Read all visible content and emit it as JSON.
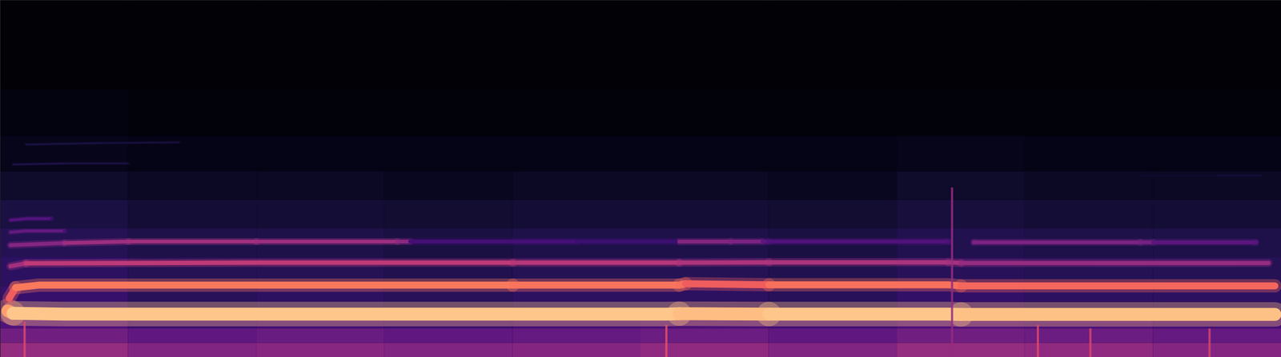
{
  "chart_data": {
    "type": "spectrogram",
    "tick_labels": false,
    "color": "magma",
    "level_range": [
      0,
      1
    ],
    "xlim": [
      0,
      100
    ],
    "ylim": [
      0,
      100
    ],
    "background": {
      "time_edges": [
        0,
        10,
        20,
        30,
        40,
        50,
        60,
        70,
        80,
        90,
        100
      ],
      "freq_edges": [
        0,
        4,
        8,
        12,
        20,
        28,
        36,
        44,
        52,
        62,
        75,
        100
      ],
      "levels": [
        [
          0.42,
          0.37,
          0.39,
          0.37,
          0.38,
          0.41,
          0.37,
          0.42,
          0.41,
          0.38
        ],
        [
          0.33,
          0.29,
          0.31,
          0.29,
          0.3,
          0.32,
          0.29,
          0.33,
          0.32,
          0.3
        ],
        [
          0.25,
          0.21,
          0.22,
          0.21,
          0.22,
          0.24,
          0.22,
          0.25,
          0.24,
          0.22
        ],
        [
          0.19,
          0.16,
          0.17,
          0.16,
          0.17,
          0.17,
          0.16,
          0.18,
          0.17,
          0.17
        ],
        [
          0.17,
          0.15,
          0.15,
          0.14,
          0.15,
          0.15,
          0.14,
          0.16,
          0.15,
          0.15
        ],
        [
          0.15,
          0.13,
          0.13,
          0.12,
          0.13,
          0.13,
          0.12,
          0.14,
          0.13,
          0.13
        ],
        [
          0.12,
          0.1,
          0.1,
          0.09,
          0.1,
          0.1,
          0.09,
          0.11,
          0.1,
          0.1
        ],
        [
          0.08,
          0.07,
          0.07,
          0.06,
          0.07,
          0.07,
          0.06,
          0.08,
          0.07,
          0.07
        ],
        [
          0.05,
          0.04,
          0.04,
          0.04,
          0.04,
          0.04,
          0.04,
          0.05,
          0.04,
          0.04
        ],
        [
          0.03,
          0.02,
          0.02,
          0.02,
          0.02,
          0.02,
          0.02,
          0.02,
          0.02,
          0.02
        ],
        [
          0.01,
          0.01,
          0.01,
          0.01,
          0.01,
          0.01,
          0.01,
          0.01,
          0.01,
          0.01
        ]
      ]
    },
    "harmonics": [
      {
        "x": [
          0.6,
          1,
          5,
          20,
          40,
          52,
          53,
          60,
          74,
          75,
          90,
          99.5
        ],
        "y": [
          13,
          12.3,
          12.1,
          12.1,
          12.1,
          12.1,
          12.2,
          12.1,
          12.1,
          12.0,
          12.0,
          12.0
        ],
        "level": [
          0.8,
          0.88,
          0.88,
          0.88,
          0.88,
          0.88,
          0.86,
          0.88,
          0.88,
          0.87,
          0.87,
          0.87
        ]
      },
      {
        "x": [
          0.7,
          1.2,
          3,
          20,
          40,
          53,
          53.5,
          60,
          74,
          75,
          90,
          99.5
        ],
        "y": [
          16.5,
          19.5,
          20.2,
          20.2,
          20.2,
          20.2,
          20.6,
          20.3,
          20.3,
          20.0,
          20.0,
          20.0
        ],
        "level": [
          0.66,
          0.72,
          0.72,
          0.72,
          0.71,
          0.7,
          0.66,
          0.7,
          0.7,
          0.68,
          0.68,
          0.68
        ]
      },
      {
        "x": [
          0.8,
          2,
          20,
          40,
          53,
          60,
          74,
          75,
          90,
          99
        ],
        "y": [
          25.5,
          26.3,
          26.5,
          26.5,
          26.5,
          26.6,
          26.6,
          26.4,
          26.4,
          26.4
        ],
        "level": [
          0.45,
          0.52,
          0.52,
          0.5,
          0.48,
          0.47,
          0.46,
          0.42,
          0.42,
          0.42
        ]
      },
      {
        "x": [
          0.8,
          5,
          10,
          20,
          31,
          32,
          45,
          53,
          57,
          59.5,
          60,
          74,
          75,
          76,
          89,
          90,
          98
        ],
        "y": [
          31.4,
          32.0,
          32.4,
          32.4,
          32.4,
          32.4,
          32.4,
          32.4,
          32.4,
          32.4,
          32.4,
          32.4,
          null,
          32.2,
          32.2,
          32.2,
          32.2
        ],
        "level": [
          0.38,
          0.44,
          0.45,
          0.44,
          0.4,
          0.22,
          0.2,
          0.38,
          0.36,
          0.28,
          0.25,
          0.24,
          null,
          0.36,
          0.34,
          0.28,
          0.27
        ]
      },
      {
        "x": [
          0.8,
          2,
          5
        ],
        "y": [
          35.0,
          35.4,
          35.4
        ],
        "level": [
          0.3,
          0.3,
          0.22
        ]
      },
      {
        "x": [
          0.8,
          2,
          4
        ],
        "y": [
          38.4,
          38.8,
          38.8
        ],
        "level": [
          0.26,
          0.26,
          0.18
        ]
      },
      {
        "x": [
          1,
          5,
          10
        ],
        "y": [
          54.0,
          54.3,
          54.3
        ],
        "level": [
          0.13,
          0.12,
          0.08
        ]
      },
      {
        "x": [
          2,
          8,
          14
        ],
        "y": [
          59.6,
          60.0,
          60.2
        ],
        "level": [
          0.12,
          0.11,
          0.07
        ]
      },
      {
        "x": [
          89,
          95,
          98.5
        ],
        "y": [
          50.8,
          50.9,
          50.9
        ],
        "level": [
          0.08,
          0.1,
          0.08
        ]
      }
    ],
    "transients": [
      {
        "x": 74.3,
        "y1": 0,
        "y2": 47.5,
        "level": 0.42
      },
      {
        "x": 1.9,
        "y1": 0,
        "y2": 10,
        "level": 0.6
      },
      {
        "x": 52.0,
        "y1": 0,
        "y2": 9,
        "level": 0.62
      },
      {
        "x": 81.0,
        "y1": 0,
        "y2": 9,
        "level": 0.6
      },
      {
        "x": 85.1,
        "y1": 0,
        "y2": 8,
        "level": 0.58
      },
      {
        "x": 94.4,
        "y1": 0,
        "y2": 8,
        "level": 0.58
      }
    ]
  }
}
